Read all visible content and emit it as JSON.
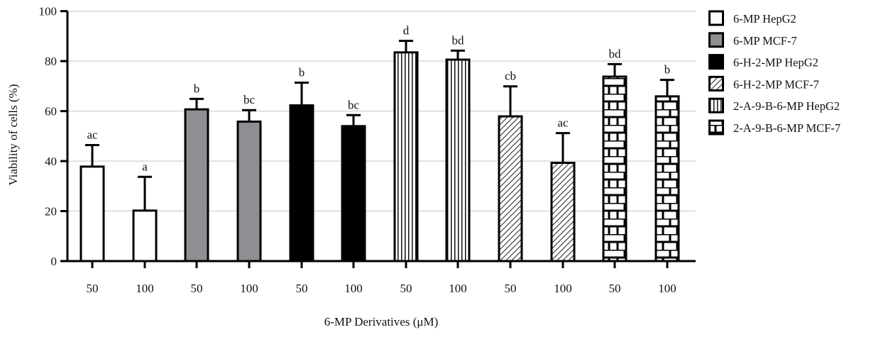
{
  "chart_data": {
    "type": "bar",
    "title": "",
    "xlabel": "6-MP Derivatives (μM)",
    "ylabel": "Viability of cells (%)",
    "ylim": [
      0,
      100
    ],
    "yticks": [
      0,
      20,
      40,
      60,
      80,
      100
    ],
    "grid": true,
    "legend_position": "right",
    "categories": [
      "50",
      "100",
      "50",
      "100",
      "50",
      "100",
      "50",
      "100",
      "50",
      "100",
      "50",
      "100"
    ],
    "series": [
      {
        "name": "6-MP HepG2",
        "fill": "white",
        "color": "#ffffff",
        "indices": [
          0,
          1
        ]
      },
      {
        "name": "6-MP MCF-7",
        "fill": "gray",
        "color": "#8e8e93",
        "indices": [
          2,
          3
        ]
      },
      {
        "name": "6-H-2-MP HepG2",
        "fill": "black",
        "color": "#000000",
        "indices": [
          4,
          5
        ]
      },
      {
        "name": "6-H-2-MP MCF-7",
        "fill": "diagonal",
        "color": "#ffffff",
        "indices": [
          6,
          7
        ]
      },
      {
        "name": "2-A-9-B-6-MP HepG2",
        "fill": "vertical",
        "color": "#ffffff",
        "indices": [
          8,
          9
        ]
      },
      {
        "name": "2-A-9-B-6-MP MCF-7",
        "fill": "brick",
        "color": "#ffffff",
        "indices": [
          10,
          11
        ]
      }
    ],
    "bars": [
      {
        "series": 0,
        "concentration": "50",
        "value": 37.8,
        "error": 8.6,
        "label": "ac"
      },
      {
        "series": 0,
        "concentration": "100",
        "value": 20.2,
        "error": 13.5,
        "label": "a"
      },
      {
        "series": 1,
        "concentration": "50",
        "value": 60.7,
        "error": 4.2,
        "label": "b"
      },
      {
        "series": 1,
        "concentration": "100",
        "value": 55.8,
        "error": 4.6,
        "label": "bc"
      },
      {
        "series": 2,
        "concentration": "50",
        "value": 62.3,
        "error": 9.1,
        "label": "b"
      },
      {
        "series": 2,
        "concentration": "100",
        "value": 54.0,
        "error": 4.4,
        "label": "bc"
      },
      {
        "series": 4,
        "concentration": "50",
        "value": 83.5,
        "error": 4.6,
        "label": "d"
      },
      {
        "series": 4,
        "concentration": "100",
        "value": 80.6,
        "error": 3.6,
        "label": "bd"
      },
      {
        "series": 3,
        "concentration": "50",
        "value": 57.9,
        "error": 12.0,
        "label": "cb"
      },
      {
        "series": 3,
        "concentration": "100",
        "value": 39.3,
        "error": 11.9,
        "label": "ac"
      },
      {
        "series": 5,
        "concentration": "50",
        "value": 73.8,
        "error": 5.0,
        "label": "bd"
      },
      {
        "series": 5,
        "concentration": "100",
        "value": 65.9,
        "error": 6.6,
        "label": "b"
      }
    ]
  }
}
